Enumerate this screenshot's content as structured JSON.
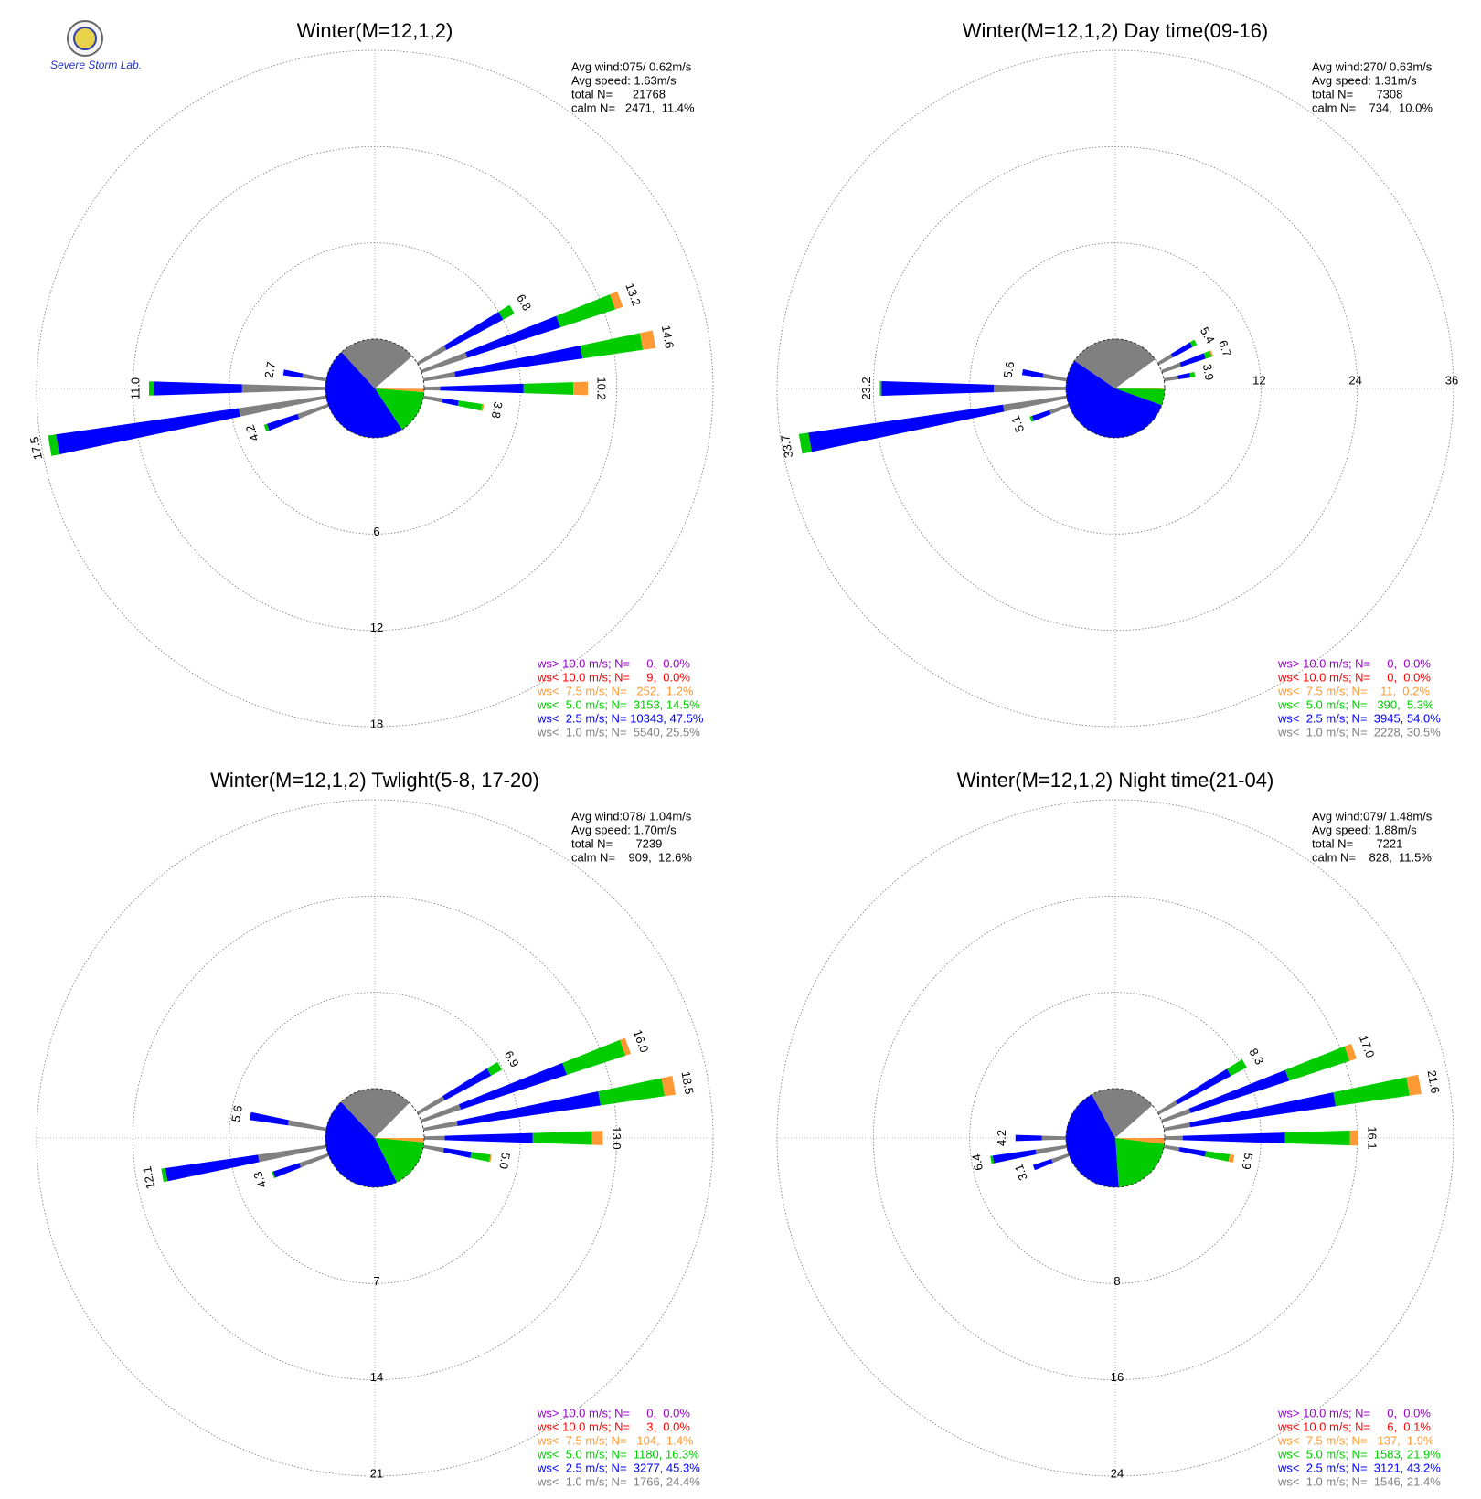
{
  "logo": "Severe Storm Lab.",
  "chart_data": [
    {
      "type": "windrose",
      "title": "Winter(M=12,1,2)",
      "info": [
        "Avg wind:075/ 0.62m/s",
        "Avg speed: 1.63m/s",
        "total N=      21768",
        "calm N=   2471,  11.4%"
      ],
      "calm": 11.4,
      "rlim": [
        0,
        18
      ],
      "rticks": [
        6,
        12,
        18
      ],
      "rtick_axis": "south",
      "legend": [
        {
          "label": "ws> 10.0 m/s; N=     0,  0.0%",
          "color": "#9900cc",
          "value": 0
        },
        {
          "label": "ws< 10.0 m/s; N=     9,  0.0%",
          "color": "#ff0000",
          "value": 0
        },
        {
          "label": "ws<  7.5 m/s; N=   252,  1.2%",
          "color": "#ff9933",
          "value": 1.2
        },
        {
          "label": "ws<  5.0 m/s; N=  3153, 14.5%",
          "color": "#00cc00",
          "value": 14.5
        },
        {
          "label": "ws<  2.5 m/s; N= 10343, 47.5%",
          "color": "#0000ff",
          "value": 47.5
        },
        {
          "label": "ws<  1.0 m/s; N=  5540, 25.5%",
          "color": "#808080",
          "value": 25.5
        }
      ],
      "petals": [
        {
          "direction": 60,
          "total": 6.8,
          "segments": [
            2.0,
            4.0,
            0.8
          ]
        },
        {
          "direction": 70,
          "total": 13.2,
          "segments": [
            3.0,
            6.1,
            3.6,
            0.5
          ]
        },
        {
          "direction": 80,
          "total": 14.6,
          "segments": [
            2.0,
            8.0,
            3.8,
            0.8
          ]
        },
        {
          "direction": 90,
          "total": 10.2,
          "segments": [
            1.0,
            5.2,
            3.1,
            0.9
          ]
        },
        {
          "direction": 100,
          "total": 3.8,
          "segments": [
            1.2,
            1.0,
            1.5,
            0.1
          ]
        },
        {
          "direction": 250,
          "total": 4.2,
          "segments": [
            2.0,
            2.0,
            0.2
          ]
        },
        {
          "direction": 260,
          "total": 17.5,
          "segments": [
            5.5,
            11.5,
            0.5
          ]
        },
        {
          "direction": 270,
          "total": 11.0,
          "label": "11.0",
          "segments": [
            5.2,
            5.5,
            0.3
          ]
        },
        {
          "direction": 280,
          "total": 2.7,
          "segments": [
            1.5,
            1.2
          ]
        }
      ]
    },
    {
      "type": "windrose",
      "title": "Winter(M=12,1,2) Day time(09-16)",
      "info": [
        "Avg wind:270/ 0.63m/s",
        "Avg speed: 1.31m/s",
        "total N=       7308",
        "calm N=    734,  10.0%"
      ],
      "calm": 10.0,
      "rlim": [
        0,
        36
      ],
      "rticks": [
        12,
        24,
        36
      ],
      "rtick_axis": "east",
      "legend": [
        {
          "label": "ws> 10.0 m/s; N=     0,  0.0%",
          "color": "#9900cc",
          "value": 0
        },
        {
          "label": "ws< 10.0 m/s; N=     0,  0.0%",
          "color": "#ff0000",
          "value": 0
        },
        {
          "label": "ws<  7.5 m/s; N=    11,  0.2%",
          "color": "#ff9933",
          "value": 0.2
        },
        {
          "label": "ws<  5.0 m/s; N=   390,  5.3%",
          "color": "#00cc00",
          "value": 5.3
        },
        {
          "label": "ws<  2.5 m/s; N=  3945, 54.0%",
          "color": "#0000ff",
          "value": 54.0
        },
        {
          "label": "ws<  1.0 m/s; N=  2228, 30.5%",
          "color": "#808080",
          "value": 30.5
        }
      ],
      "petals": [
        {
          "direction": 60,
          "total": 5.4,
          "segments": [
            2.0,
            2.8,
            0.6
          ]
        },
        {
          "direction": 70,
          "total": 6.7,
          "segments": [
            2.5,
            3.2,
            0.8,
            0.2
          ]
        },
        {
          "direction": 80,
          "total": 3.9,
          "segments": [
            1.8,
            1.5,
            0.6
          ]
        },
        {
          "direction": 250,
          "total": 5.1,
          "segments": [
            2.5,
            2.3,
            0.3
          ]
        },
        {
          "direction": 260,
          "total": 33.7,
          "segments": [
            8.0,
            24.5,
            1.2
          ]
        },
        {
          "direction": 270,
          "total": 23.2,
          "segments": [
            9.0,
            14.0,
            0.2
          ]
        },
        {
          "direction": 280,
          "total": 5.6,
          "segments": [
            3.0,
            2.6
          ]
        }
      ]
    },
    {
      "type": "windrose",
      "title": "Winter(M=12,1,2) Twlight(5-8, 17-20)",
      "info": [
        "Avg wind:078/ 1.04m/s",
        "Avg speed: 1.70m/s",
        "total N=       7239",
        "calm N=    909,  12.6%"
      ],
      "calm": 12.6,
      "rlim": [
        0,
        21
      ],
      "rticks": [
        7,
        14,
        21
      ],
      "rtick_axis": "south",
      "legend": [
        {
          "label": "ws> 10.0 m/s; N=     0,  0.0%",
          "color": "#9900cc",
          "value": 0
        },
        {
          "label": "ws< 10.0 m/s; N=     3,  0.0%",
          "color": "#ff0000",
          "value": 0
        },
        {
          "label": "ws<  7.5 m/s; N=   104,  1.4%",
          "color": "#ff9933",
          "value": 1.4
        },
        {
          "label": "ws<  5.0 m/s; N=  1180, 16.3%",
          "color": "#00cc00",
          "value": 16.3
        },
        {
          "label": "ws<  2.5 m/s; N=  3277, 45.3%",
          "color": "#0000ff",
          "value": 45.3
        },
        {
          "label": "ws<  1.0 m/s; N=  1766, 24.4%",
          "color": "#808080",
          "value": 24.4
        }
      ],
      "petals": [
        {
          "direction": 60,
          "total": 6.9,
          "segments": [
            2.2,
            3.8,
            0.9
          ]
        },
        {
          "direction": 70,
          "total": 16.0,
          "label": "16.0",
          "segments": [
            3.0,
            8.1,
            4.5,
            0.4
          ]
        },
        {
          "direction": 80,
          "total": 18.5,
          "segments": [
            2.5,
            10.5,
            4.7,
            0.8
          ]
        },
        {
          "direction": 90,
          "total": 13.0,
          "label": "13.0",
          "segments": [
            1.5,
            6.4,
            4.3,
            0.8
          ]
        },
        {
          "direction": 100,
          "total": 5.0,
          "label": "5.0",
          "segments": [
            1.5,
            2.0,
            1.4,
            0.1
          ]
        },
        {
          "direction": 250,
          "total": 4.3,
          "segments": [
            2.2,
            2.0,
            0.1
          ]
        },
        {
          "direction": 260,
          "total": 12.1,
          "segments": [
            5.0,
            6.8,
            0.3
          ]
        },
        {
          "direction": 280,
          "total": 5.6,
          "segments": [
            2.8,
            2.8
          ]
        }
      ]
    },
    {
      "type": "windrose",
      "title": "Winter(M=12,1,2) Night time(21-04)",
      "info": [
        "Avg wind:079/ 1.48m/s",
        "Avg speed: 1.88m/s",
        "total N=       7221",
        "calm N=    828,  11.5%"
      ],
      "calm": 11.5,
      "rlim": [
        0,
        24
      ],
      "rticks": [
        8,
        16,
        24
      ],
      "rtick_axis": "south",
      "legend": [
        {
          "label": "ws> 10.0 m/s; N=     0,  0.0%",
          "color": "#9900cc",
          "value": 0
        },
        {
          "label": "ws< 10.0 m/s; N=     6,  0.1%",
          "color": "#ff0000",
          "value": 0.1
        },
        {
          "label": "ws<  7.5 m/s; N=   137,  1.9%",
          "color": "#ff9933",
          "value": 1.9
        },
        {
          "label": "ws<  5.0 m/s; N=  1583, 21.9%",
          "color": "#00cc00",
          "value": 21.9
        },
        {
          "label": "ws<  2.5 m/s; N=  3121, 43.2%",
          "color": "#0000ff",
          "value": 43.2
        },
        {
          "label": "ws<  1.0 m/s; N=  1546, 21.4%",
          "color": "#808080",
          "value": 21.4
        }
      ],
      "petals": [
        {
          "direction": 60,
          "total": 8.3,
          "segments": [
            1.8,
            5.0,
            1.5
          ]
        },
        {
          "direction": 70,
          "total": 17.0,
          "label": "17.0",
          "segments": [
            2.5,
            8.6,
            5.3,
            0.6
          ]
        },
        {
          "direction": 80,
          "total": 21.6,
          "segments": [
            2.2,
            12.2,
            6.2,
            1.0
          ]
        },
        {
          "direction": 90,
          "total": 16.1,
          "segments": [
            1.5,
            8.5,
            5.4,
            0.7
          ]
        },
        {
          "direction": 100,
          "total": 5.9,
          "segments": [
            1.3,
            2.2,
            2.0,
            0.4
          ]
        },
        {
          "direction": 250,
          "total": 3.1,
          "segments": [
            1.5,
            1.6
          ]
        },
        {
          "direction": 260,
          "total": 6.4,
          "segments": [
            2.6,
            3.6,
            0.2
          ]
        },
        {
          "direction": 270,
          "total": 4.2,
          "segments": [
            2.0,
            2.2
          ]
        }
      ]
    }
  ]
}
